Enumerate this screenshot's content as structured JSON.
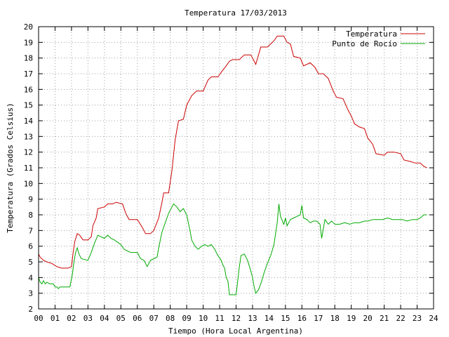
{
  "chart_data": {
    "type": "line",
    "title": "Temperatura 17/03/2013",
    "xlabel": "Tiempo (Hora Local Argentina)",
    "ylabel": "Temperatura (Grados Celsius)",
    "xlim": [
      0,
      24
    ],
    "ylim": [
      2,
      20
    ],
    "x_ticks": [
      "00",
      "01",
      "02",
      "03",
      "04",
      "05",
      "06",
      "07",
      "08",
      "09",
      "10",
      "11",
      "12",
      "13",
      "14",
      "15",
      "16",
      "17",
      "18",
      "19",
      "20",
      "21",
      "22",
      "23",
      "24"
    ],
    "y_ticks": [
      2,
      3,
      4,
      5,
      6,
      7,
      8,
      9,
      10,
      11,
      12,
      13,
      14,
      15,
      16,
      17,
      18,
      19,
      20
    ],
    "grid": true,
    "legend_position": "top-right",
    "series": [
      {
        "name": "Temperatura",
        "color": "#cc0000",
        "points": [
          [
            0.0,
            5.5
          ],
          [
            0.1,
            5.3
          ],
          [
            0.3,
            5.1
          ],
          [
            0.5,
            5.0
          ],
          [
            0.8,
            4.9
          ],
          [
            1.1,
            4.7
          ],
          [
            1.4,
            4.6
          ],
          [
            1.8,
            4.6
          ],
          [
            2.0,
            4.7
          ],
          [
            2.1,
            5.6
          ],
          [
            2.2,
            6.3
          ],
          [
            2.35,
            6.8
          ],
          [
            2.5,
            6.7
          ],
          [
            2.7,
            6.4
          ],
          [
            3.0,
            6.4
          ],
          [
            3.2,
            6.6
          ],
          [
            3.3,
            7.3
          ],
          [
            3.5,
            7.8
          ],
          [
            3.6,
            8.4
          ],
          [
            4.0,
            8.5
          ],
          [
            4.2,
            8.7
          ],
          [
            4.5,
            8.7
          ],
          [
            4.7,
            8.8
          ],
          [
            5.1,
            8.7
          ],
          [
            5.3,
            8.1
          ],
          [
            5.5,
            7.7
          ],
          [
            6.0,
            7.7
          ],
          [
            6.3,
            7.2
          ],
          [
            6.5,
            6.8
          ],
          [
            6.8,
            6.8
          ],
          [
            7.0,
            7.0
          ],
          [
            7.3,
            7.8
          ],
          [
            7.5,
            8.8
          ],
          [
            7.6,
            9.4
          ],
          [
            7.9,
            9.4
          ],
          [
            8.1,
            10.8
          ],
          [
            8.3,
            12.8
          ],
          [
            8.5,
            14.0
          ],
          [
            8.8,
            14.1
          ],
          [
            9.0,
            15.0
          ],
          [
            9.3,
            15.6
          ],
          [
            9.6,
            15.9
          ],
          [
            10.0,
            15.9
          ],
          [
            10.3,
            16.6
          ],
          [
            10.5,
            16.8
          ],
          [
            10.9,
            16.8
          ],
          [
            11.1,
            17.1
          ],
          [
            11.4,
            17.5
          ],
          [
            11.6,
            17.8
          ],
          [
            11.8,
            17.9
          ],
          [
            12.2,
            17.9
          ],
          [
            12.5,
            18.2
          ],
          [
            12.9,
            18.2
          ],
          [
            13.1,
            17.8
          ],
          [
            13.2,
            17.6
          ],
          [
            13.5,
            18.7
          ],
          [
            13.9,
            18.7
          ],
          [
            14.1,
            18.9
          ],
          [
            14.3,
            19.1
          ],
          [
            14.5,
            19.4
          ],
          [
            14.9,
            19.4
          ],
          [
            15.1,
            19.0
          ],
          [
            15.3,
            18.9
          ],
          [
            15.5,
            18.1
          ],
          [
            15.9,
            18.0
          ],
          [
            16.1,
            17.5
          ],
          [
            16.5,
            17.7
          ],
          [
            16.8,
            17.4
          ],
          [
            17.0,
            17.0
          ],
          [
            17.3,
            17.0
          ],
          [
            17.6,
            16.7
          ],
          [
            17.9,
            15.9
          ],
          [
            18.1,
            15.5
          ],
          [
            18.5,
            15.4
          ],
          [
            18.8,
            14.7
          ],
          [
            19.0,
            14.3
          ],
          [
            19.2,
            13.8
          ],
          [
            19.5,
            13.6
          ],
          [
            19.8,
            13.5
          ],
          [
            20.0,
            12.9
          ],
          [
            20.3,
            12.5
          ],
          [
            20.5,
            11.9
          ],
          [
            21.0,
            11.8
          ],
          [
            21.2,
            12.0
          ],
          [
            21.6,
            12.0
          ],
          [
            22.0,
            11.9
          ],
          [
            22.2,
            11.5
          ],
          [
            22.6,
            11.4
          ],
          [
            22.9,
            11.3
          ],
          [
            23.2,
            11.3
          ],
          [
            23.4,
            11.1
          ],
          [
            23.6,
            11.0
          ]
        ]
      },
      {
        "name": "Punto de Rocío",
        "color": "#00aa00",
        "points": [
          [
            0.0,
            4.0
          ],
          [
            0.1,
            3.7
          ],
          [
            0.2,
            3.6
          ],
          [
            0.3,
            3.8
          ],
          [
            0.4,
            3.6
          ],
          [
            0.5,
            3.7
          ],
          [
            0.7,
            3.6
          ],
          [
            0.9,
            3.6
          ],
          [
            1.0,
            3.4
          ],
          [
            1.1,
            3.4
          ],
          [
            1.2,
            3.3
          ],
          [
            1.3,
            3.4
          ],
          [
            1.5,
            3.4
          ],
          [
            1.7,
            3.4
          ],
          [
            1.9,
            3.4
          ],
          [
            2.05,
            4.2
          ],
          [
            2.15,
            5.0
          ],
          [
            2.25,
            5.6
          ],
          [
            2.35,
            5.9
          ],
          [
            2.45,
            5.5
          ],
          [
            2.6,
            5.2
          ],
          [
            3.0,
            5.1
          ],
          [
            3.2,
            5.6
          ],
          [
            3.4,
            6.2
          ],
          [
            3.6,
            6.7
          ],
          [
            3.8,
            6.6
          ],
          [
            4.0,
            6.5
          ],
          [
            4.2,
            6.7
          ],
          [
            4.4,
            6.5
          ],
          [
            4.6,
            6.4
          ],
          [
            5.0,
            6.1
          ],
          [
            5.2,
            5.8
          ],
          [
            5.4,
            5.7
          ],
          [
            5.6,
            5.6
          ],
          [
            6.0,
            5.6
          ],
          [
            6.2,
            5.2
          ],
          [
            6.4,
            5.1
          ],
          [
            6.6,
            4.7
          ],
          [
            6.8,
            5.1
          ],
          [
            7.0,
            5.2
          ],
          [
            7.2,
            5.3
          ],
          [
            7.3,
            5.9
          ],
          [
            7.5,
            6.9
          ],
          [
            7.7,
            7.5
          ],
          [
            7.9,
            8.1
          ],
          [
            8.0,
            8.3
          ],
          [
            8.2,
            8.7
          ],
          [
            8.4,
            8.5
          ],
          [
            8.6,
            8.2
          ],
          [
            8.8,
            8.4
          ],
          [
            9.0,
            8.0
          ],
          [
            9.2,
            7.0
          ],
          [
            9.3,
            6.4
          ],
          [
            9.5,
            6.0
          ],
          [
            9.7,
            5.8
          ],
          [
            9.9,
            6.0
          ],
          [
            10.1,
            6.1
          ],
          [
            10.3,
            6.0
          ],
          [
            10.5,
            6.1
          ],
          [
            10.7,
            5.8
          ],
          [
            10.9,
            5.4
          ],
          [
            11.1,
            5.1
          ],
          [
            11.2,
            4.8
          ],
          [
            11.3,
            4.6
          ],
          [
            11.4,
            4.0
          ],
          [
            11.5,
            3.8
          ],
          [
            11.6,
            2.9
          ],
          [
            12.0,
            2.9
          ],
          [
            12.2,
            4.7
          ],
          [
            12.3,
            5.4
          ],
          [
            12.5,
            5.5
          ],
          [
            12.7,
            5.1
          ],
          [
            12.9,
            4.4
          ],
          [
            13.0,
            4.0
          ],
          [
            13.1,
            3.4
          ],
          [
            13.2,
            3.0
          ],
          [
            13.35,
            3.2
          ],
          [
            13.5,
            3.6
          ],
          [
            13.7,
            4.3
          ],
          [
            13.9,
            4.9
          ],
          [
            14.1,
            5.4
          ],
          [
            14.3,
            6.1
          ],
          [
            14.5,
            7.5
          ],
          [
            14.6,
            8.7
          ],
          [
            14.7,
            7.9
          ],
          [
            14.9,
            7.4
          ],
          [
            15.0,
            7.8
          ],
          [
            15.1,
            7.3
          ],
          [
            15.3,
            7.7
          ],
          [
            15.5,
            7.8
          ],
          [
            15.7,
            7.9
          ],
          [
            15.9,
            8.0
          ],
          [
            16.0,
            8.6
          ],
          [
            16.1,
            7.8
          ],
          [
            16.3,
            7.7
          ],
          [
            16.5,
            7.5
          ],
          [
            16.7,
            7.6
          ],
          [
            16.9,
            7.6
          ],
          [
            17.1,
            7.4
          ],
          [
            17.2,
            6.5
          ],
          [
            17.4,
            7.7
          ],
          [
            17.6,
            7.4
          ],
          [
            17.8,
            7.6
          ],
          [
            18.0,
            7.4
          ],
          [
            18.3,
            7.4
          ],
          [
            18.6,
            7.5
          ],
          [
            18.9,
            7.4
          ],
          [
            19.2,
            7.5
          ],
          [
            19.5,
            7.5
          ],
          [
            19.8,
            7.6
          ],
          [
            20.0,
            7.6
          ],
          [
            20.3,
            7.7
          ],
          [
            20.6,
            7.7
          ],
          [
            20.9,
            7.7
          ],
          [
            21.2,
            7.8
          ],
          [
            21.5,
            7.7
          ],
          [
            21.8,
            7.7
          ],
          [
            22.1,
            7.7
          ],
          [
            22.4,
            7.6
          ],
          [
            22.7,
            7.7
          ],
          [
            23.0,
            7.7
          ],
          [
            23.2,
            7.8
          ],
          [
            23.4,
            8.0
          ],
          [
            23.6,
            8.0
          ]
        ]
      }
    ]
  }
}
